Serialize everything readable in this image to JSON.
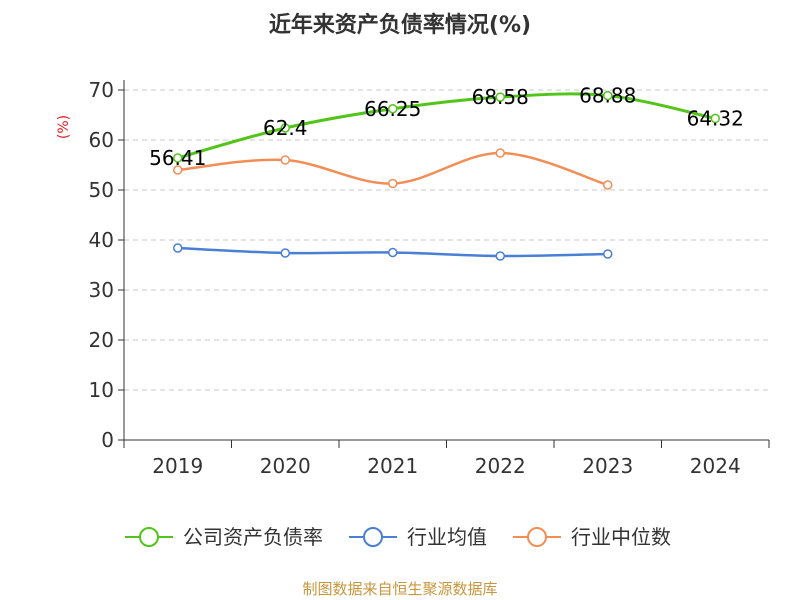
{
  "chart_data": {
    "type": "line",
    "title": "近年来资产负债率情况(%)",
    "ylabel": "(%)",
    "xlabel": "",
    "categories": [
      "2019",
      "2020",
      "2021",
      "2022",
      "2023",
      "2024"
    ],
    "ylim": [
      0,
      70
    ],
    "yticks": [
      0,
      10,
      20,
      30,
      40,
      50,
      60,
      70
    ],
    "grid": true,
    "legend_position": "bottom",
    "series": [
      {
        "name": "公司资产负债率",
        "color": "#52c41a",
        "values": [
          56.41,
          62.4,
          66.25,
          68.58,
          68.88,
          64.32
        ],
        "labels": [
          "56.41",
          "62.4",
          "66.25",
          "68.58",
          "68.88",
          "64.32"
        ]
      },
      {
        "name": "行业均值",
        "color": "#4a7fd6",
        "values": [
          38.4,
          37.4,
          37.5,
          36.8,
          37.2,
          null
        ]
      },
      {
        "name": "行业中位数",
        "color": "#f28e55",
        "values": [
          54.0,
          56.0,
          51.3,
          57.4,
          51.0,
          null
        ]
      }
    ]
  },
  "footer": {
    "source": "制图数据来自恒生聚源数据库"
  }
}
